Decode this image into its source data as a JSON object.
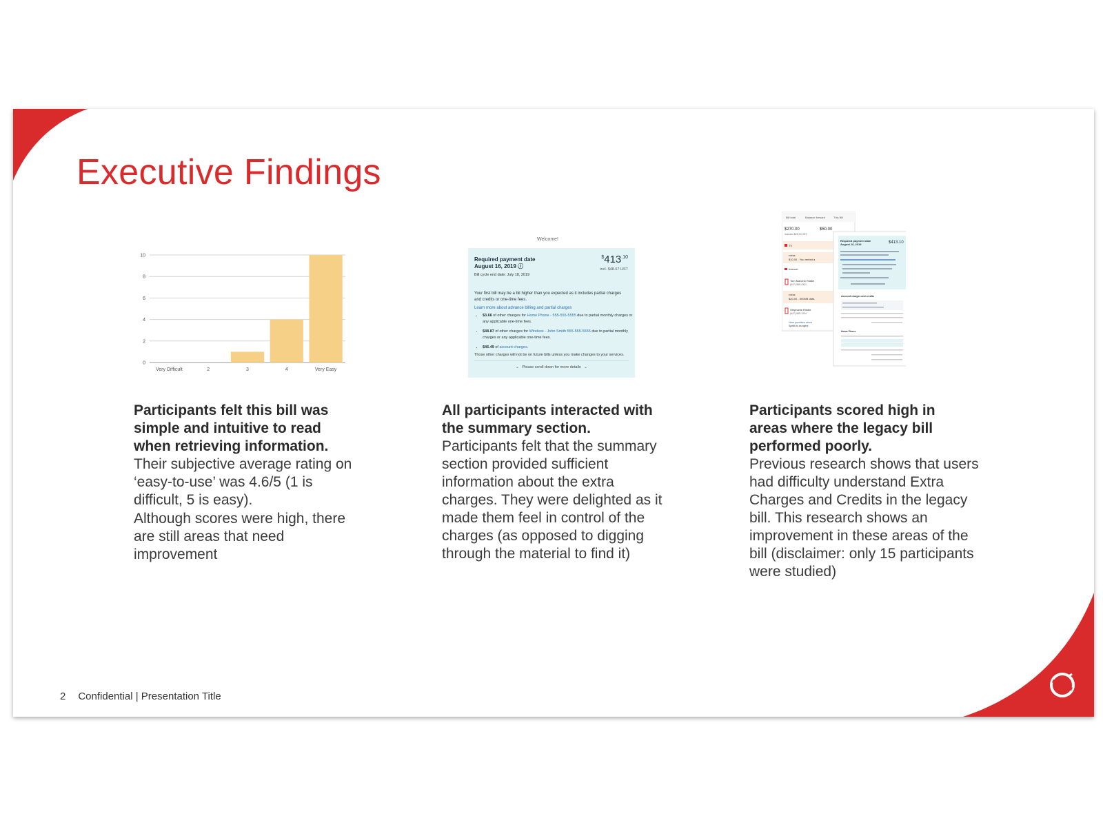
{
  "title": "Executive Findings",
  "footer": {
    "page_number": "2",
    "text": "Confidential | Presentation Title"
  },
  "colors": {
    "accent": "#d92b2b",
    "bar": "#f7d087",
    "bill_bg": "#e1f3f4"
  },
  "columns": [
    {
      "heading": "Participants felt this bill was simple and intuitive to read when retrieving information.",
      "paragraphs": [
        "Their subjective average rating on ‘easy-to-use’ was 4.6/5 (1 is difficult, 5 is easy).",
        "Although scores were high, there are still areas that need improvement"
      ]
    },
    {
      "heading": "All participants interacted with the summary section.",
      "paragraphs": [
        "Participants felt that the summary section provided sufficient information about the extra charges. They were delighted as it made them feel in control of the charges (as opposed to digging through the material to find it)"
      ]
    },
    {
      "heading": "Participants scored high in areas where the legacy bill performed poorly.",
      "paragraphs": [
        "Previous research shows that users had difficulty understand Extra Charges and Credits in the legacy bill. This research shows an improvement in these areas of the bill (disclaimer: only 15 participants were studied)"
      ]
    }
  ],
  "chart_data": {
    "type": "bar",
    "categories": [
      "Very Difficult",
      "2",
      "3",
      "4",
      "Very Easy"
    ],
    "values": [
      0,
      0,
      1,
      4,
      10
    ],
    "yticks": [
      "0",
      "2",
      "4",
      "6",
      "8",
      "10"
    ],
    "ylim": [
      0,
      10
    ],
    "grid": true,
    "title": "",
    "xlabel": "",
    "ylabel": ""
  },
  "bill_summary": {
    "welcome": "Welcome!",
    "required_label": "Required payment date",
    "required_date": "August 16, 2019",
    "cycle": "Bill cycle end date: July 18, 2019",
    "amount_symbol": "$",
    "amount": "413",
    "amount_cents": ".10",
    "incl": "incl. $48.67 HST",
    "intro": "Your first bill may be a bit higher than you expected as it includes partial charges and credits or one-time fees.",
    "link": "Learn more about advance billing and partial charges",
    "items": [
      {
        "amount": "$3.66",
        "pre": " of other charges for ",
        "service": "Home Phone - 555-555-5555",
        "post": " due to partial monthly charges or any applicable one-time fees."
      },
      {
        "amount": "$48.87",
        "pre": " of other charges for ",
        "service": "Wireless - John Smith 555-555-5555",
        "post": " due to partial monthly charges or any applicable one-time fees."
      },
      {
        "amount": "$46.49",
        "pre": " of ",
        "service": "account charges",
        "post": "."
      }
    ],
    "note": "Those other charges will not be on future bills unless you make changes to your services.",
    "scroll": "Please scroll down for more details"
  },
  "legacy_bill": {
    "tabs": [
      "Bill total",
      "Balance forward",
      "This Bill"
    ],
    "total": "$270.00",
    "balance": "$50.00",
    "includes": "includes $25.00 HST",
    "rows": [
      "TV",
      "extras",
      "$10.00 - You rented a",
      "Internet",
      "Tom Marcelo Riddle",
      "(647) 555-4321",
      "extras",
      "$20.00 - 500MB data",
      "Stephanie Riddle",
      "(647) 555-1234",
      "Have questions about",
      "Speak to an agent"
    ],
    "front_required": "Required payment date",
    "front_date": "August 16, 2019",
    "front_amount": "$413.10",
    "section_account": "Account charges and credits",
    "section_home": "Home Phone"
  }
}
